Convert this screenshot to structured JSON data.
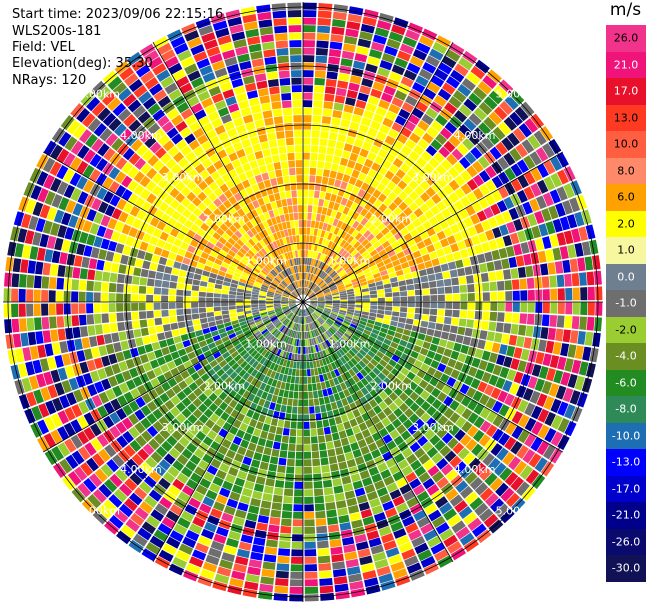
{
  "header": {
    "start_time": "Start time: 2023/09/06 22:15:16",
    "station": "WLS200s-181",
    "field": "Field: VEL",
    "elevation": "Elevation(deg): 35.30",
    "nrays": "NRays: 120"
  },
  "colorbar": {
    "unit": "m/s",
    "entries": [
      {
        "label": "26.0",
        "color": "#f2338c"
      },
      {
        "label": "21.0",
        "color": "#f0137a"
      },
      {
        "label": "17.0",
        "color": "#e8102a"
      },
      {
        "label": "13.0",
        "color": "#ff3a22"
      },
      {
        "label": "10.0",
        "color": "#ff5e40"
      },
      {
        "label": "8.0",
        "color": "#ff8a6a"
      },
      {
        "label": "6.0",
        "color": "#ffa100"
      },
      {
        "label": "2.0",
        "color": "#ffff00"
      },
      {
        "label": "1.0",
        "color": "#f7f7a0"
      },
      {
        "label": "0.0",
        "color": "#6e7f90"
      },
      {
        "label": "-1.0",
        "color": "#6e6e6e"
      },
      {
        "label": "-2.0",
        "color": "#9acd32"
      },
      {
        "label": "-4.0",
        "color": "#6b8e23"
      },
      {
        "label": "-6.0",
        "color": "#228b22"
      },
      {
        "label": "-8.0",
        "color": "#2e8b57"
      },
      {
        "label": "-10.0",
        "color": "#1e6eb4"
      },
      {
        "label": "-13.0",
        "color": "#0000ff"
      },
      {
        "label": "-17.0",
        "color": "#0000cd"
      },
      {
        "label": "-21.0",
        "color": "#00008b"
      },
      {
        "label": "-26.0",
        "color": "#0a0a6e"
      },
      {
        "label": "-30.0",
        "color": "#111155"
      }
    ]
  },
  "range_labels": [
    "1.00km",
    "2.00km",
    "3.00km",
    "4.00km",
    "5.00km"
  ]
}
